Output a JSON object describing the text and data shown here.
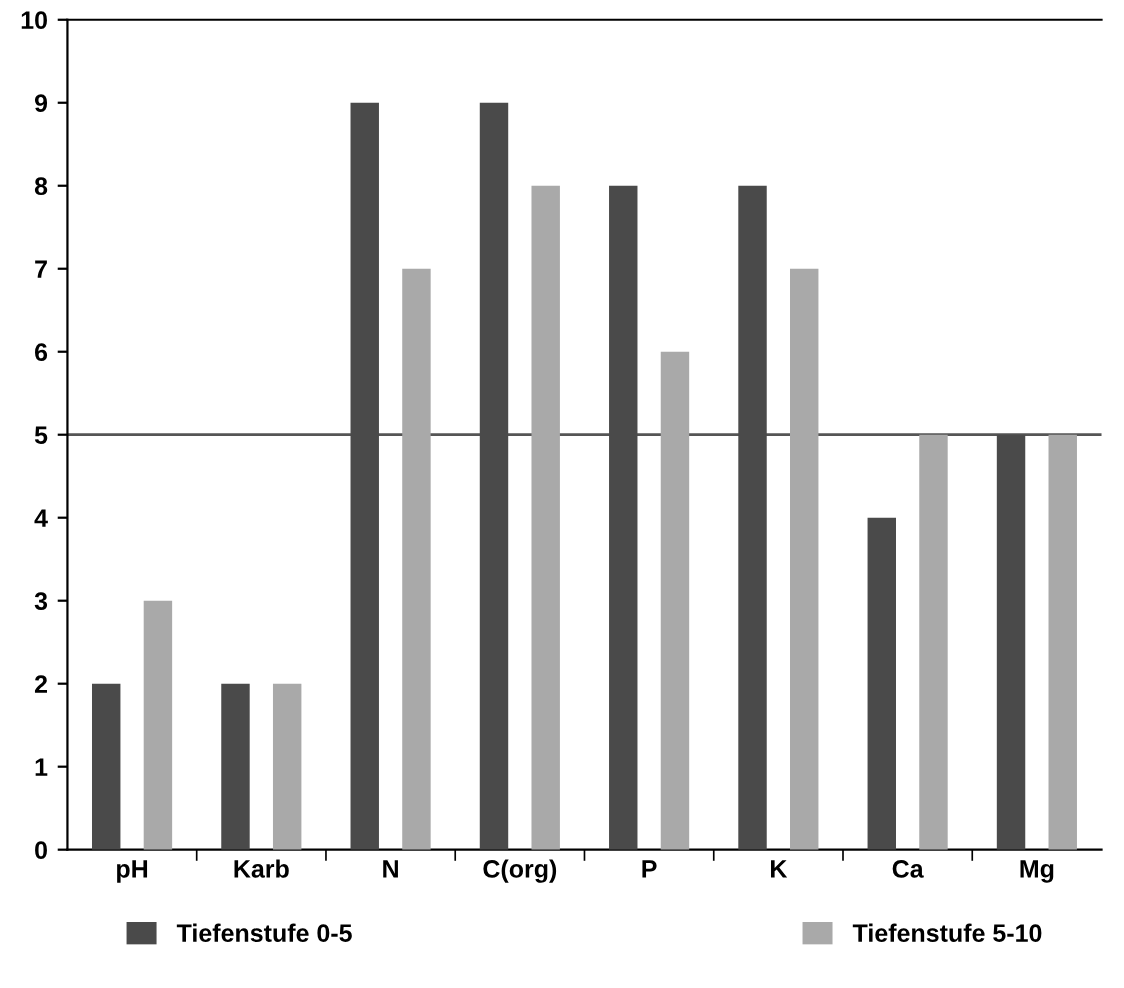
{
  "chart_data": {
    "type": "bar",
    "categories": [
      "pH",
      "Karb",
      "N",
      "C(org)",
      "P",
      "K",
      "Ca",
      "Mg"
    ],
    "series": [
      {
        "name": "Tiefenstufe 0-5",
        "color": "#4a4a4a",
        "values": [
          2,
          2,
          9,
          9,
          8,
          8,
          4,
          5
        ]
      },
      {
        "name": "Tiefenstufe 5-10",
        "color": "#a9a9a9",
        "values": [
          3,
          2,
          7,
          8,
          6,
          7,
          5,
          5
        ]
      }
    ],
    "ylim": [
      0,
      10
    ],
    "yticks": [
      0,
      1,
      2,
      3,
      4,
      5,
      6,
      7,
      8,
      9,
      10
    ],
    "ref_lines": [
      {
        "axis": "y",
        "value": 5,
        "label": null,
        "color": "#555555"
      }
    ],
    "legend": "bottom",
    "grid": false
  }
}
